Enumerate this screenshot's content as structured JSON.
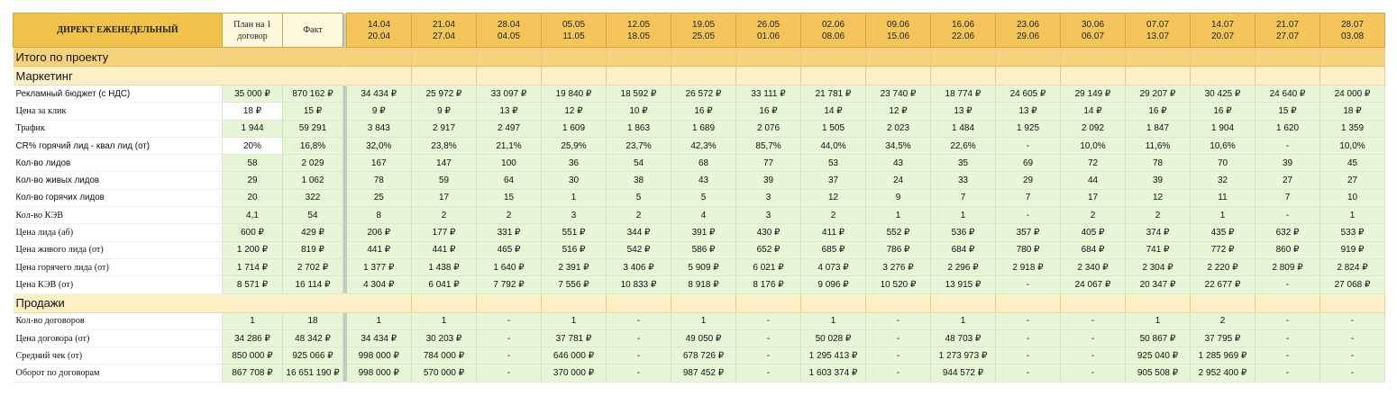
{
  "header": {
    "title": "ДИРЕКТ ЕЖЕНЕДЕЛЬНЫЙ",
    "plan": "План на 1 договор",
    "fact": "Факт",
    "weeks": [
      {
        "start": "14.04",
        "end": "20.04"
      },
      {
        "start": "21.04",
        "end": "27.04"
      },
      {
        "start": "28.04",
        "end": "04.05"
      },
      {
        "start": "05.05",
        "end": "11.05"
      },
      {
        "start": "12.05",
        "end": "18.05"
      },
      {
        "start": "19.05",
        "end": "25.05"
      },
      {
        "start": "26.05",
        "end": "01.06"
      },
      {
        "start": "02.06",
        "end": "08.06"
      },
      {
        "start": "09.06",
        "end": "15.06"
      },
      {
        "start": "16.06",
        "end": "22.06"
      },
      {
        "start": "23.06",
        "end": "29.06"
      },
      {
        "start": "30.06",
        "end": "06.07"
      },
      {
        "start": "07.07",
        "end": "13.07"
      },
      {
        "start": "14.07",
        "end": "20.07"
      },
      {
        "start": "21.07",
        "end": "27.07"
      },
      {
        "start": "28.07",
        "end": "03.08"
      }
    ]
  },
  "sections": {
    "total": "Итого по проекту",
    "marketing": "Маркетинг",
    "sales": "Продажи"
  },
  "marketing_rows": [
    {
      "label": "Рекламный бюджет (с НДС)",
      "sans": true,
      "plan": "35 000 ₽",
      "fact": "870 162 ₽",
      "weeks": [
        "34 434 ₽",
        "25 972 ₽",
        "33 097 ₽",
        "19 840 ₽",
        "18 592 ₽",
        "26 572 ₽",
        "33 111 ₽",
        "21 781 ₽",
        "23 740 ₽",
        "18 774 ₽",
        "24 605 ₽",
        "29 149 ₽",
        "29 207 ₽",
        "30 425 ₽",
        "24 640 ₽",
        "24 000 ₽"
      ]
    },
    {
      "label": "Цена за клик",
      "plan": "18 ₽",
      "fact": "15 ₽",
      "planWhite": true,
      "weeks": [
        "9 ₽",
        "9 ₽",
        "13 ₽",
        "12 ₽",
        "10 ₽",
        "16 ₽",
        "16 ₽",
        "14 ₽",
        "12 ₽",
        "13 ₽",
        "13 ₽",
        "14 ₽",
        "16 ₽",
        "16 ₽",
        "15 ₽",
        "18 ₽"
      ]
    },
    {
      "label": "Трафик",
      "plan": "1 944",
      "fact": "59 291",
      "weeks": [
        "3 843",
        "2 917",
        "2 497",
        "1 609",
        "1 863",
        "1 689",
        "2 076",
        "1 505",
        "2 023",
        "1 484",
        "1 925",
        "2 092",
        "1 847",
        "1 904",
        "1 620",
        "1 359"
      ]
    },
    {
      "label": "CR% горячий лид - квал лид (от)",
      "sans": true,
      "plan": "20%",
      "fact": "16,8%",
      "planWhite": true,
      "weeks": [
        "32,0%",
        "23,8%",
        "21,1%",
        "25,9%",
        "23,7%",
        "42,3%",
        "85,7%",
        "44,0%",
        "34,5%",
        "22,6%",
        "-",
        "10,0%",
        "11,6%",
        "10,6%",
        "-",
        "10,0%"
      ]
    },
    {
      "label": "Кол-во лидов",
      "sans": true,
      "plan": "58",
      "fact": "2 029",
      "weeks": [
        "167",
        "147",
        "100",
        "36",
        "54",
        "68",
        "77",
        "53",
        "43",
        "35",
        "69",
        "72",
        "78",
        "70",
        "39",
        "45"
      ]
    },
    {
      "label": "Кол-во живых лидов",
      "sans": true,
      "plan": "29",
      "fact": "1 062",
      "weeks": [
        "78",
        "59",
        "64",
        "30",
        "38",
        "43",
        "39",
        "37",
        "24",
        "33",
        "29",
        "44",
        "39",
        "32",
        "27",
        "27"
      ]
    },
    {
      "label": "Кол-во горячих лидов",
      "sans": true,
      "plan": "20",
      "fact": "322",
      "weeks": [
        "25",
        "17",
        "15",
        "1",
        "5",
        "5",
        "3",
        "12",
        "9",
        "7",
        "7",
        "17",
        "12",
        "11",
        "7",
        "10"
      ]
    },
    {
      "label": "Кол-во КЭВ",
      "plan": "4,1",
      "fact": "54",
      "weeks": [
        "8",
        "2",
        "2",
        "3",
        "2",
        "4",
        "3",
        "2",
        "1",
        "1",
        "-",
        "2",
        "2",
        "1",
        "-",
        "1"
      ]
    },
    {
      "label": "Цена лида (аб)",
      "plan": "600 ₽",
      "fact": "429 ₽",
      "weeks": [
        "206 ₽",
        "177 ₽",
        "331 ₽",
        "551 ₽",
        "344 ₽",
        "391 ₽",
        "430 ₽",
        "411 ₽",
        "552 ₽",
        "536 ₽",
        "357 ₽",
        "405 ₽",
        "374 ₽",
        "435 ₽",
        "632 ₽",
        "533 ₽"
      ]
    },
    {
      "label": "Цена живого лида (от)",
      "plan": "1 200 ₽",
      "fact": "819 ₽",
      "weeks": [
        "441 ₽",
        "441 ₽",
        "465 ₽",
        "516 ₽",
        "542 ₽",
        "586 ₽",
        "652 ₽",
        "685 ₽",
        "786 ₽",
        "684 ₽",
        "780 ₽",
        "684 ₽",
        "741 ₽",
        "772 ₽",
        "860 ₽",
        "919 ₽"
      ]
    },
    {
      "label": "Цена горячего лида (от)",
      "plan": "1 714 ₽",
      "fact": "2 702 ₽",
      "weeks": [
        "1 377 ₽",
        "1 438 ₽",
        "1 640 ₽",
        "2 391 ₽",
        "3 406 ₽",
        "5 909 ₽",
        "6 021 ₽",
        "4 073 ₽",
        "3 276 ₽",
        "2 296 ₽",
        "2 918 ₽",
        "2 340 ₽",
        "2 304 ₽",
        "2 220 ₽",
        "2 809 ₽",
        "2 824 ₽"
      ]
    },
    {
      "label": "Цена КЭВ (от)",
      "plan": "8 571 ₽",
      "fact": "16 114 ₽",
      "weeks": [
        "4 304 ₽",
        "6 041 ₽",
        "7 792 ₽",
        "7 556 ₽",
        "10 833 ₽",
        "8 918 ₽",
        "8 176 ₽",
        "9 096 ₽",
        "10 520 ₽",
        "13 915 ₽",
        "-",
        "24 067 ₽",
        "20 347 ₽",
        "22 677 ₽",
        "-",
        "27 068 ₽"
      ]
    }
  ],
  "sales_rows": [
    {
      "label": "Кол-во договоров",
      "plan": "1",
      "fact": "18",
      "weeks": [
        "1",
        "1",
        "-",
        "1",
        "-",
        "1",
        "-",
        "1",
        "-",
        "1",
        "-",
        "-",
        "1",
        "2",
        "-",
        "-"
      ]
    },
    {
      "label": "Цена договора (от)",
      "plan": "34 286 ₽",
      "fact": "48 342 ₽",
      "weeks": [
        "34 434 ₽",
        "30 203 ₽",
        "-",
        "37 781 ₽",
        "-",
        "49 050 ₽",
        "-",
        "50 028 ₽",
        "-",
        "48 703 ₽",
        "-",
        "-",
        "50 867 ₽",
        "37 795 ₽",
        "-",
        "-"
      ]
    },
    {
      "label": "Средний чек (от)",
      "plan": "850 000 ₽",
      "fact": "925 066 ₽",
      "weeks": [
        "998 000 ₽",
        "784 000 ₽",
        "-",
        "646 000 ₽",
        "-",
        "678 726 ₽",
        "-",
        "1 295 413 ₽",
        "-",
        "1 273 973 ₽",
        "-",
        "-",
        "925 040 ₽",
        "1 285 969 ₽",
        "-",
        "-"
      ]
    },
    {
      "label": "Оборот по договорам",
      "plan": "867 708 ₽",
      "fact": "16 651 190 ₽",
      "weeks": [
        "998 000 ₽",
        "570 000 ₽",
        "-",
        "370 000 ₽",
        "-",
        "987 452 ₽",
        "-",
        "1 603 374 ₽",
        "-",
        "944 572 ₽",
        "-",
        "-",
        "905 508 ₽",
        "2 952 400 ₽",
        "-",
        "-"
      ]
    }
  ]
}
